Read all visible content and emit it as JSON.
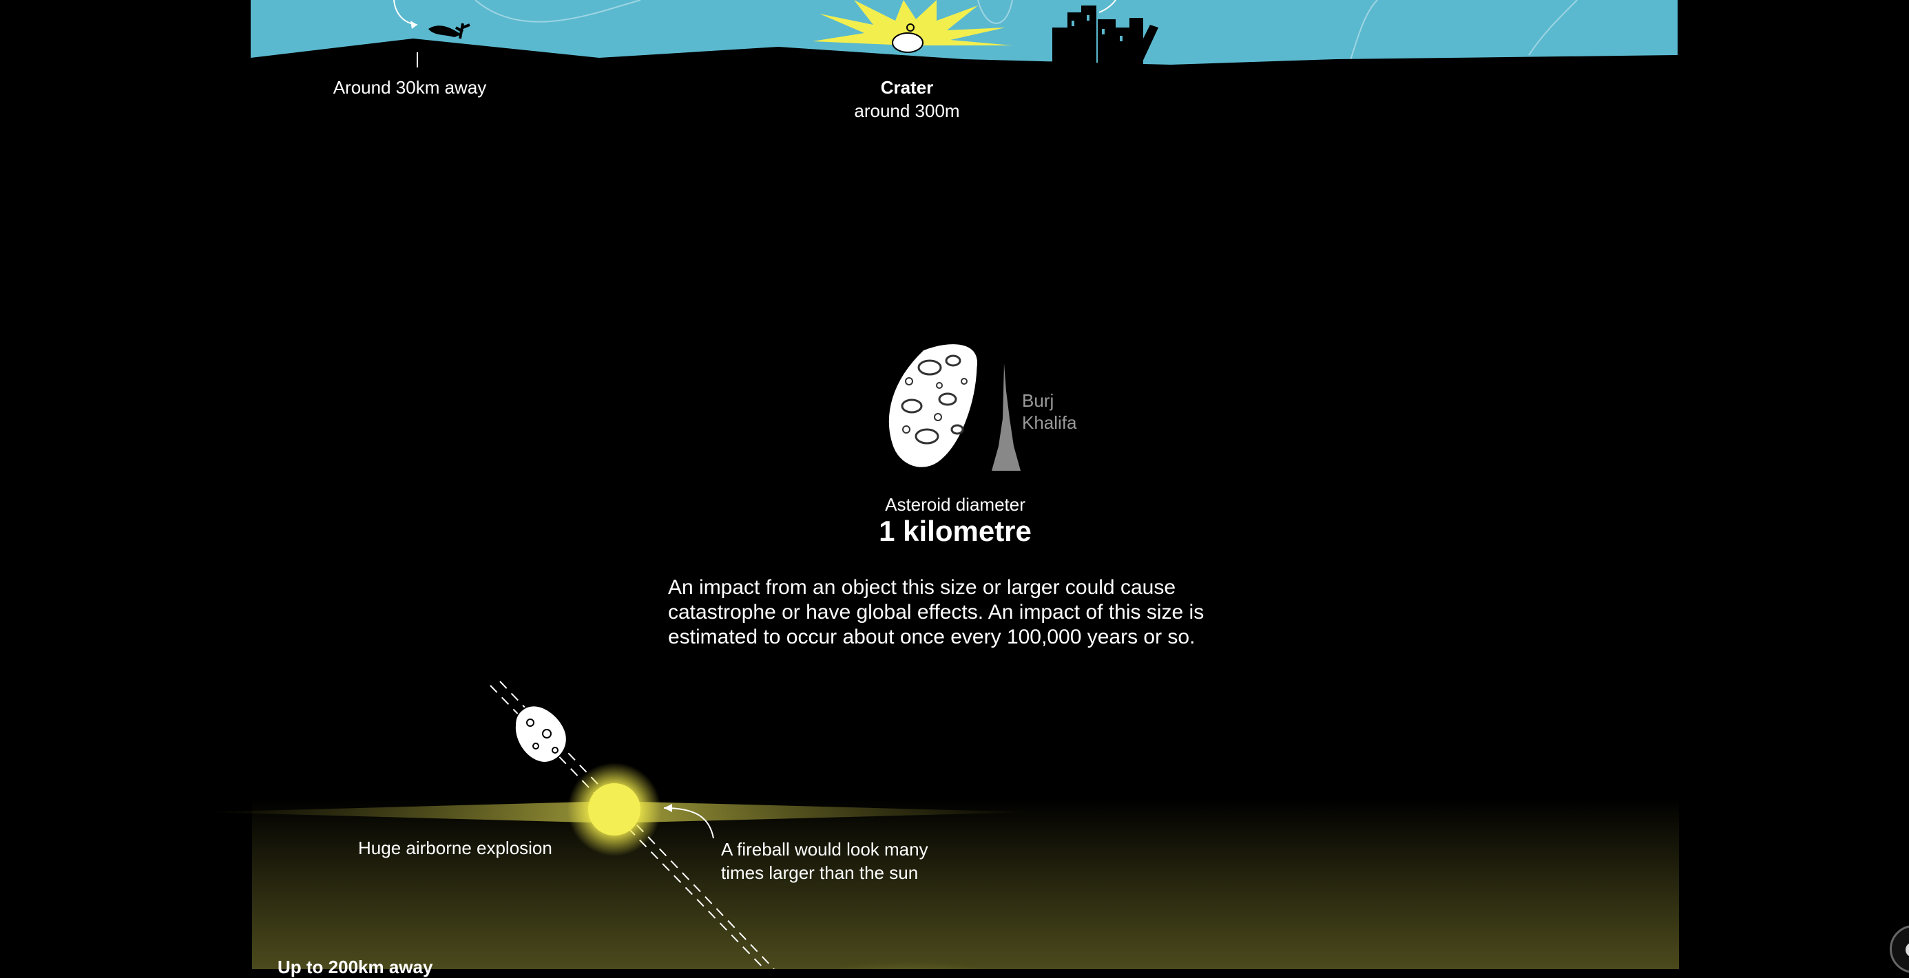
{
  "top_scene": {
    "distance_label": "Around 30km away",
    "crater_title": "Crater",
    "crater_size": "around 300m"
  },
  "asteroid": {
    "comparison_label": "Burj\nKhalifa",
    "comparison_line1": "Burj",
    "comparison_line2": "Khalifa",
    "diameter_label": "Asteroid diameter",
    "diameter_value": "1 kilometre",
    "description": "An impact from an object this size or larger could cause catastrophe or have global effects. An impact of this size is estimated to occur about once every 100,000 years or so."
  },
  "bottom_scene": {
    "airburst_label": "Huge airborne explosion",
    "fireball_line1": "A fireball would look many",
    "fireball_line2": "times larger than the sun",
    "distance_label": "Up to 200km away"
  },
  "colors": {
    "sky": "#5bb9cf",
    "ground": "#000000",
    "flash": "#f2ee4e",
    "burj": "#888888",
    "text": "#ffffff",
    "muted_text": "#9a9a9a"
  },
  "icons": [
    "bird-icon",
    "city-icon",
    "crater-flash-icon",
    "asteroid-icon",
    "burj-khalifa-icon",
    "fireball-icon",
    "arrow-icon"
  ]
}
